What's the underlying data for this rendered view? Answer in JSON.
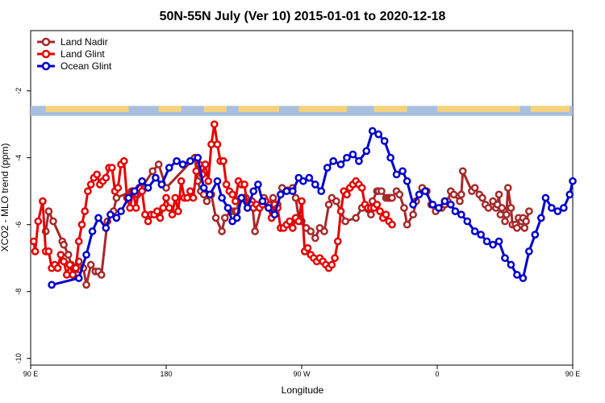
{
  "chart_data": {
    "type": "line",
    "title": "50N-55N July (Ver 10)   2015-01-01 to 2020-12-18",
    "xlabel": "Longitude",
    "ylabel": "XCO2 - MLO trend (ppm)",
    "xlim": [
      90,
      450
    ],
    "ylim": [
      -10.2,
      -0.2
    ],
    "x_ticks": [
      {
        "value": 90,
        "label": "90 E"
      },
      {
        "value": 180,
        "label": "180"
      },
      {
        "value": 270,
        "label": "90 W"
      },
      {
        "value": 360,
        "label": "0"
      },
      {
        "value": 450,
        "label": "90 E"
      },
      {
        "value": 540,
        "label": "180"
      }
    ],
    "y_ticks": [
      {
        "value": -2,
        "label": "-2"
      },
      {
        "value": -4,
        "label": "-4"
      },
      {
        "value": -6,
        "label": "-6"
      },
      {
        "value": -8,
        "label": "-8"
      },
      {
        "value": -10,
        "label": "-10"
      }
    ],
    "legend_position": "top-left",
    "land_ocean_strip": {
      "y_range": [
        -2.45,
        -2.75
      ],
      "land_color": "#f5d37a",
      "ocean_color": "#a9bfe0"
    },
    "series": [
      {
        "name": "Land Nadir",
        "color": "#a52a2a",
        "x": [
          100,
          102,
          105,
          111,
          112,
          115,
          117,
          121,
          122,
          125,
          127,
          130,
          133,
          135,
          137,
          141,
          145,
          147,
          157,
          161,
          171,
          175,
          180,
          199,
          201,
          203,
          205,
          207,
          210,
          213,
          217,
          219,
          223,
          225,
          226,
          227,
          228,
          230,
          231,
          232,
          233,
          237,
          239,
          245,
          248,
          251,
          254,
          257,
          264,
          266,
          268,
          270,
          273,
          276,
          279,
          282,
          285,
          288,
          290,
          293,
          299,
          306,
          310,
          316,
          317,
          320,
          321,
          323,
          326,
          327,
          328,
          329,
          330,
          333,
          335,
          338,
          340,
          344,
          346,
          350,
          353,
          356,
          359,
          363,
          365,
          367,
          369,
          371,
          375,
          376,
          377,
          383,
          385,
          388,
          390,
          392,
          394,
          397,
          399,
          400,
          401,
          402,
          403,
          405,
          406,
          407,
          409,
          410,
          412,
          413,
          414,
          416,
          417,
          418,
          419,
          421
        ],
        "y": [
          -6.2,
          -5.6,
          -5.9,
          -6.5,
          -6.6,
          -6.9,
          -7.2,
          -7.5,
          -7.1,
          -7.3,
          -7.8,
          -7.2,
          -7.4,
          -7.4,
          -7.5,
          -5.9,
          -5.6,
          -5.2,
          -5.0,
          -5.1,
          -4.4,
          -4.2,
          -4.9,
          -4.0,
          -4.7,
          -5.0,
          -5.1,
          -5.3,
          -5.1,
          -5.8,
          -6.2,
          -5.8,
          -5.6,
          -5.6,
          -5.6,
          -5.6,
          -5.3,
          -5.2,
          -5.2,
          -5.2,
          -5.2,
          -5.3,
          -6.2,
          -5.2,
          -5.4,
          -5.2,
          -5.4,
          -4.9,
          -4.9,
          -5.2,
          -5.8,
          -5.9,
          -6.1,
          -6.2,
          -6.4,
          -6.1,
          -6.2,
          -5.4,
          -5.2,
          -5.3,
          -5.9,
          -5.8,
          -5.5,
          -5.7,
          -5.3,
          -5.0,
          -5.0,
          -5.0,
          -5.2,
          -5.2,
          -5.2,
          -5.2,
          -5.2,
          -5.0,
          -5.1,
          -5.5,
          -6.0,
          -5.7,
          -5.3,
          -4.9,
          -5.0,
          -5.4,
          -5.6,
          -5.5,
          -5.4,
          -5.3,
          -5.0,
          -5.1,
          -5.3,
          -5.1,
          -4.4,
          -5.0,
          -4.9,
          -5.1,
          -5.2,
          -5.4,
          -5.5,
          -5.3,
          -5.5,
          -5.4,
          -5.1,
          -5.7,
          -5.5,
          -5.9,
          -5.7,
          -4.9,
          -5.5,
          -6.0,
          -6.0,
          -6.1,
          -5.8,
          -5.9,
          -5.8,
          -6.1,
          -5.9,
          -5.6
        ],
        "markers": "circle"
      },
      {
        "name": "Land Glint",
        "color": "#e60000",
        "x": [
          92,
          93,
          95,
          98,
          100,
          102,
          104,
          106,
          108,
          110,
          112,
          114,
          116,
          118,
          120,
          122,
          124,
          126,
          128,
          130,
          132,
          134,
          136,
          138,
          140,
          142,
          144,
          146,
          148,
          150,
          152,
          154,
          156,
          158,
          160,
          162,
          164,
          166,
          168,
          170,
          172,
          174,
          176,
          178,
          180,
          182,
          184,
          186,
          188,
          190,
          192,
          194,
          196,
          198,
          200,
          202,
          204,
          206,
          208,
          210,
          212,
          214,
          216,
          218,
          220,
          222,
          224,
          226,
          228,
          230,
          232,
          234,
          236,
          238,
          240,
          242,
          244,
          246,
          248,
          250,
          252,
          254,
          256,
          258,
          260,
          262,
          264,
          266,
          268,
          270,
          272,
          274,
          276,
          278,
          280,
          282,
          284,
          286,
          288,
          290,
          292,
          294,
          296,
          298,
          300,
          302,
          304,
          306,
          308,
          310,
          312,
          314,
          316,
          318,
          320,
          322,
          324,
          326,
          328,
          330
        ],
        "y": [
          -6.5,
          -6.8,
          -5.9,
          -5.3,
          -6.8,
          -6.8,
          -7.3,
          -7.2,
          -7.3,
          -6.9,
          -7.1,
          -7.5,
          -7.2,
          -7.5,
          -7.3,
          -6.5,
          -6.0,
          -5.6,
          -5.0,
          -4.8,
          -4.6,
          -4.5,
          -4.8,
          -4.7,
          -4.6,
          -4.3,
          -4.3,
          -5.0,
          -4.9,
          -4.2,
          -4.1,
          -5.2,
          -5.5,
          -5.0,
          -5.5,
          -4.9,
          -5.0,
          -5.7,
          -5.9,
          -5.7,
          -5.7,
          -5.6,
          -5.8,
          -5.5,
          -5.2,
          -5.5,
          -5.7,
          -5.2,
          -5.6,
          -4.7,
          -5.2,
          -5.2,
          -5.0,
          -5.2,
          -4.4,
          -4.2,
          -4.5,
          -4.2,
          -4.7,
          -3.6,
          -3.0,
          -3.6,
          -4.1,
          -4.1,
          -4.8,
          -5.0,
          -5.1,
          -5.3,
          -4.7,
          -4.8,
          -4.8,
          -5.5,
          -5.4,
          -5.5,
          -5.4,
          -5.5,
          -5.4,
          -5.3,
          -5.5,
          -5.8,
          -5.4,
          -5.5,
          -6.1,
          -6.1,
          -6.0,
          -5.9,
          -6.1,
          -5.8,
          -5.9,
          -5.3,
          -6.8,
          -6.7,
          -6.9,
          -7.0,
          -7.1,
          -7.0,
          -7.1,
          -7.2,
          -7.3,
          -7.2,
          -7.0,
          -6.5,
          -5.6,
          -5.0,
          -5.1,
          -4.9,
          -4.8,
          -4.7,
          -4.8,
          -4.9,
          -5.4,
          -5.5,
          -5.5,
          -5.5,
          -5.4,
          -5.6,
          -5.8,
          -5.7,
          -5.9,
          -6.0
        ],
        "markers": "circle"
      },
      {
        "name": "Ocean Glint",
        "color": "#0000cc",
        "x": [
          104,
          122,
          127,
          131,
          135,
          140,
          143,
          147,
          150,
          155,
          159,
          164,
          168,
          173,
          177,
          182,
          187,
          191,
          196,
          201,
          205,
          209,
          214,
          217,
          221,
          224,
          227,
          230,
          234,
          238,
          241,
          244,
          248,
          252,
          256,
          260,
          264,
          268,
          271,
          275,
          279,
          283,
          287,
          291,
          296,
          300,
          304,
          308,
          313,
          317,
          321,
          325,
          329,
          333,
          337,
          340,
          344,
          348,
          352,
          357,
          361,
          365,
          369,
          372,
          376,
          380,
          385,
          389,
          393,
          397,
          401,
          405,
          409,
          413,
          417,
          421,
          425,
          429,
          432,
          436,
          440,
          444,
          448,
          450
        ],
        "y": [
          -7.8,
          -7.6,
          -6.9,
          -6.2,
          -5.8,
          -6.1,
          -5.7,
          -5.8,
          -5.6,
          -5.2,
          -5.0,
          -4.7,
          -4.9,
          -4.6,
          -4.8,
          -4.3,
          -4.1,
          -4.2,
          -4.1,
          -4.0,
          -4.9,
          -5.1,
          -4.7,
          -5.2,
          -5.5,
          -5.9,
          -5.8,
          -5.2,
          -5.5,
          -5.0,
          -4.8,
          -5.3,
          -5.5,
          -5.7,
          -5.1,
          -5.0,
          -5.0,
          -4.6,
          -4.7,
          -4.6,
          -4.8,
          -5.0,
          -4.3,
          -4.1,
          -4.2,
          -4.0,
          -3.9,
          -4.1,
          -3.8,
          -3.2,
          -3.3,
          -3.5,
          -4.0,
          -4.5,
          -4.4,
          -4.7,
          -5.4,
          -5.1,
          -5.0,
          -5.4,
          -5.5,
          -5.3,
          -5.4,
          -5.6,
          -5.7,
          -5.9,
          -6.2,
          -6.3,
          -6.5,
          -6.6,
          -6.5,
          -7.0,
          -7.2,
          -7.5,
          -7.6,
          -6.8,
          -6.3,
          -5.8,
          -5.2,
          -5.5,
          -5.6,
          -5.5,
          -5.1,
          -4.7
        ],
        "markers": "circle"
      }
    ]
  }
}
